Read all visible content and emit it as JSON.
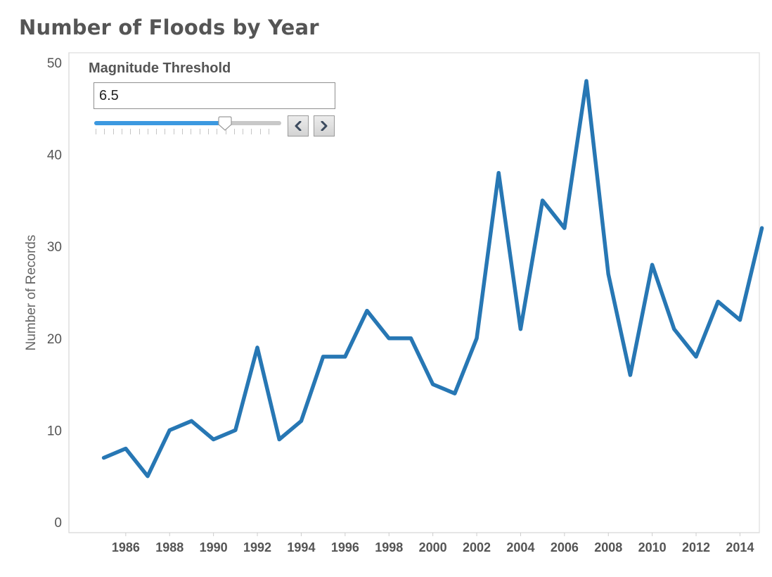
{
  "page": {
    "title": "Number of Floods by Year"
  },
  "parameter": {
    "title": "Magnitude Threshold",
    "value": "6.5",
    "level_fraction": 0.7,
    "prev_icon": "chevron-left-icon",
    "next_icon": "chevron-right-icon"
  },
  "colors": {
    "line": "#2777b4",
    "slider_fill": "#3c99e0",
    "title_text": "#555555"
  },
  "chart_data": {
    "type": "line",
    "title": "Number of Floods by Year",
    "xlabel": "",
    "ylabel": "Number of Records",
    "xlim": [
      1984.05,
      2015.5
    ],
    "ylim": [
      0,
      50
    ],
    "yticks": [
      0,
      10,
      20,
      30,
      40,
      50
    ],
    "xticks": [
      1986,
      1988,
      1990,
      1992,
      1994,
      1996,
      1998,
      2000,
      2002,
      2004,
      2006,
      2008,
      2010,
      2012,
      2014
    ],
    "grid": false,
    "series": [
      {
        "x": [
          1985,
          1986,
          1987,
          1988,
          1989,
          1990,
          1991,
          1992,
          1993,
          1994,
          1995,
          1996,
          1997,
          1998,
          1999,
          2000,
          2001,
          2002,
          2003,
          2004,
          2005,
          2006,
          2007,
          2008,
          2009,
          2010,
          2011,
          2012,
          2013,
          2014,
          2015
        ],
        "values": [
          7,
          8,
          5,
          10,
          11,
          9,
          10,
          19,
          9,
          11,
          18,
          18,
          23,
          20,
          20,
          15,
          14,
          20,
          38,
          21,
          35,
          32,
          48,
          27,
          16,
          28,
          21,
          18,
          24,
          22,
          32
        ]
      }
    ]
  }
}
